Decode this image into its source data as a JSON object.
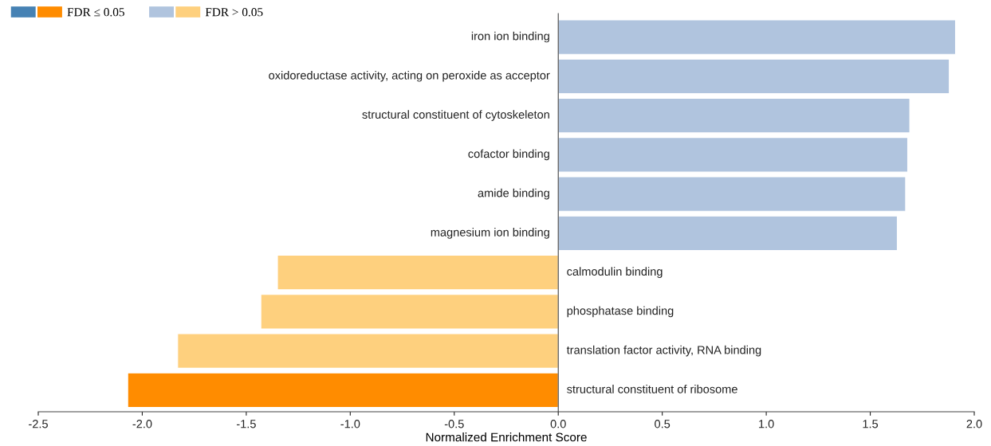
{
  "chart_data": {
    "type": "bar",
    "orientation": "horizontal",
    "xlabel": "Normalized Enrichment Score",
    "categories": [
      "iron ion binding",
      "oxidoreductase activity, acting on peroxide as acceptor",
      "structural constituent of cytoskeleton",
      "cofactor binding",
      "amide binding",
      "magnesium ion binding",
      "calmodulin binding",
      "phosphatase binding",
      "translation factor activity, RNA binding",
      "structural constituent of ribosome"
    ],
    "series": [
      {
        "name": "FDR ≤ 0.05",
        "values": [
          null,
          null,
          null,
          null,
          null,
          null,
          null,
          null,
          null,
          -2.07
        ],
        "colors": [
          "#4682b4",
          "#4682b4",
          "#4682b4",
          "#4682b4",
          "#4682b4",
          "#4682b4",
          "#ff8c00",
          "#ff8c00",
          "#ff8c00",
          "#ff8c00"
        ]
      },
      {
        "name": "FDR > 0.05",
        "values": [
          1.91,
          1.88,
          1.69,
          1.68,
          1.67,
          1.63,
          -1.35,
          -1.43,
          -1.83,
          null
        ],
        "colors": [
          "#b0c4de",
          "#b0c4de",
          "#b0c4de",
          "#b0c4de",
          "#b0c4de",
          "#b0c4de",
          "#fed07e",
          "#fed07e",
          "#fed07e",
          "#fed07e"
        ]
      }
    ],
    "xlim": [
      -2.5,
      2.0
    ],
    "xticks": [
      -2.5,
      {
        "value": -2,
        "label": "-2.0"
      },
      -1.5,
      {
        "value": -1,
        "label": "-1.0"
      },
      -0.5,
      {
        "value": 0,
        "label": "0.0"
      },
      0.5,
      {
        "value": 1,
        "label": "1.0"
      },
      1.5,
      {
        "value": 2,
        "label": "2.0"
      }
    ],
    "tick_labels": "x",
    "grid": false,
    "legend": "top left"
  }
}
